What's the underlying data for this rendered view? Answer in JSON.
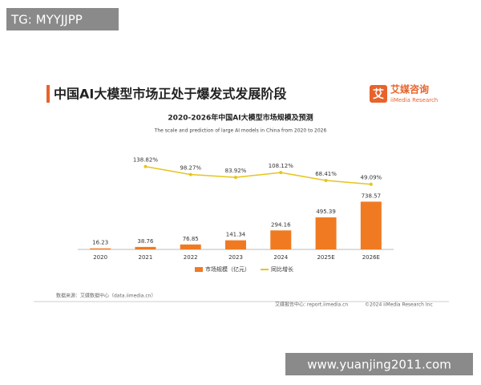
{
  "watermark_top": "TG: MYYJJPP",
  "watermark_bottom": "www.yuanjing2011.com",
  "header": {
    "title": "中国AI大模型市场正处于爆发式发展阶段",
    "logo_name": "艾媒咨询",
    "logo_sub": "iiMedia Research"
  },
  "chart_data": {
    "type": "bar",
    "title": "2020-2026年中国AI大模型市场规模及预测",
    "subtitle": "The scale and prediction of large AI models in China from 2020 to 2026",
    "categories": [
      "2020",
      "2021",
      "2022",
      "2023",
      "2024",
      "2025E",
      "2026E"
    ],
    "series": [
      {
        "name": "市场规模（亿元）",
        "type": "bar",
        "color": "#f07a22",
        "values": [
          16.23,
          38.76,
          76.85,
          141.34,
          294.16,
          495.39,
          738.57
        ]
      },
      {
        "name": "同比增长",
        "type": "line",
        "axis": "y2",
        "color": "#e6c51c",
        "values": [
          null,
          138.82,
          98.27,
          83.92,
          108.12,
          68.41,
          49.09
        ],
        "value_labels": [
          null,
          "138.82%",
          "98.27%",
          "83.92%",
          "108.12%",
          "68.41%",
          "49.09%"
        ]
      }
    ],
    "ylim": [
      0,
      1500
    ],
    "y2lim": [
      -280,
      210
    ],
    "legend": "bottom"
  },
  "footer": {
    "source": "数据来源：艾媒数据中心（data.iimedia.cn）",
    "report": "艾媒报告中心: report.iimedia.cn",
    "copyright": "©2024 iiMedia Research Inc"
  }
}
